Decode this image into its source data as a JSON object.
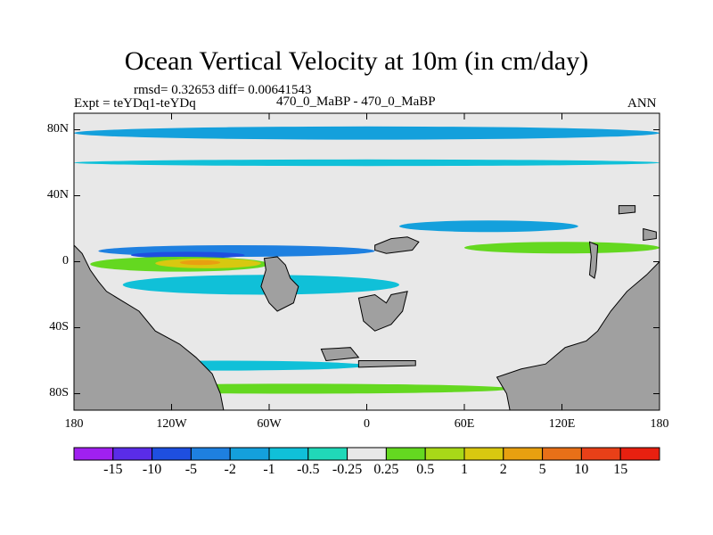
{
  "title": "Ocean Vertical Velocity at 10m (in cm/day)",
  "stats": "rmsd= 0.32653 diff= 0.00641543",
  "expt": "Expt = teYDq1-teYDq",
  "case_label": "470_0_MaBP - 470_0_MaBP",
  "season": "ANN",
  "lat_ticks": [
    "80N",
    "40N",
    "0",
    "40S",
    "80S"
  ],
  "lon_ticks": [
    "180",
    "120W",
    "60W",
    "0",
    "60E",
    "120E",
    "180"
  ],
  "colorbar": {
    "labels": [
      "-15",
      "-10",
      "-5",
      "-2",
      "-1",
      "-0.5",
      "-0.25",
      "0.25",
      "0.5",
      "1",
      "2",
      "5",
      "10",
      "15"
    ],
    "colors": [
      "#a020f0",
      "#5a2ce8",
      "#1e4fe0",
      "#1e80e0",
      "#14a0dc",
      "#10c0d8",
      "#20d8b8",
      "#e8e8e8",
      "#64d820",
      "#a8d818",
      "#d8c810",
      "#e8a010",
      "#e87018",
      "#e84018",
      "#e82010"
    ]
  },
  "chart_data": {
    "type": "heatmap",
    "title": "Ocean Vertical Velocity at 10m (in cm/day)",
    "xlabel": "",
    "ylabel": "",
    "xlim": [
      -180,
      180
    ],
    "ylim": [
      -90,
      90
    ],
    "x_ticks": [
      -180,
      -120,
      -60,
      0,
      60,
      120,
      180
    ],
    "y_ticks": [
      80,
      40,
      0,
      -40,
      -80
    ],
    "units": "cm/day",
    "levels": [
      -15,
      -10,
      -5,
      -2,
      -1,
      -0.5,
      -0.25,
      0.25,
      0.5,
      1,
      2,
      5,
      10,
      15
    ],
    "land_color": "#a0a0a0",
    "background_value_range": "-0.25 to 0.25",
    "land": [
      {
        "name": "western continent",
        "polygon": [
          [
            -180,
            -90
          ],
          [
            -180,
            10
          ],
          [
            -175,
            5
          ],
          [
            -170,
            -5
          ],
          [
            -165,
            -12
          ],
          [
            -160,
            -18
          ],
          [
            -150,
            -24
          ],
          [
            -140,
            -30
          ],
          [
            -130,
            -42
          ],
          [
            -115,
            -50
          ],
          [
            -105,
            -58
          ],
          [
            -95,
            -68
          ],
          [
            -90,
            -80
          ],
          [
            -88,
            -90
          ]
        ]
      },
      {
        "name": "eastern continent",
        "polygon": [
          [
            88,
            -90
          ],
          [
            86,
            -80
          ],
          [
            80,
            -70
          ],
          [
            95,
            -65
          ],
          [
            110,
            -62
          ],
          [
            122,
            -52
          ],
          [
            135,
            -48
          ],
          [
            142,
            -42
          ],
          [
            150,
            -30
          ],
          [
            160,
            -18
          ],
          [
            172,
            -8
          ],
          [
            180,
            0
          ],
          [
            180,
            -90
          ]
        ]
      },
      {
        "name": "island ~50W eq",
        "polygon": [
          [
            -63,
            2
          ],
          [
            -55,
            3
          ],
          [
            -50,
            -2
          ],
          [
            -47,
            -10
          ],
          [
            -42,
            -15
          ],
          [
            -45,
            -25
          ],
          [
            -55,
            -30
          ],
          [
            -60,
            -25
          ],
          [
            -65,
            -15
          ],
          [
            -62,
            -5
          ]
        ]
      },
      {
        "name": "island ~15E 25S",
        "polygon": [
          [
            -5,
            -22
          ],
          [
            5,
            -20
          ],
          [
            12,
            -25
          ],
          [
            15,
            -20
          ],
          [
            25,
            -18
          ],
          [
            22,
            -30
          ],
          [
            15,
            -38
          ],
          [
            5,
            -42
          ],
          [
            -2,
            -36
          ]
        ]
      },
      {
        "name": "island ~30E 10N",
        "polygon": [
          [
            5,
            10
          ],
          [
            15,
            14
          ],
          [
            25,
            15
          ],
          [
            32,
            12
          ],
          [
            28,
            7
          ],
          [
            12,
            5
          ],
          [
            5,
            7
          ]
        ]
      },
      {
        "name": "island ~140E 0",
        "polygon": [
          [
            137,
            12
          ],
          [
            142,
            10
          ],
          [
            141,
            -5
          ],
          [
            140,
            -10
          ],
          [
            137,
            -8
          ],
          [
            138,
            3
          ]
        ]
      },
      {
        "name": "island ~160E 30N",
        "polygon": [
          [
            155,
            34
          ],
          [
            165,
            34
          ],
          [
            165,
            30
          ],
          [
            155,
            29
          ]
        ]
      },
      {
        "name": "island ~175E 15N",
        "polygon": [
          [
            170,
            20
          ],
          [
            178,
            18
          ],
          [
            178,
            14
          ],
          [
            170,
            13
          ]
        ]
      },
      {
        "name": "island ~25W 55S",
        "polygon": [
          [
            -28,
            -53
          ],
          [
            -10,
            -52
          ],
          [
            -5,
            -58
          ],
          [
            -25,
            -60
          ]
        ]
      },
      {
        "name": "island ~5E 60S",
        "polygon": [
          [
            -5,
            -60
          ],
          [
            30,
            -60
          ],
          [
            30,
            -63
          ],
          [
            -5,
            -64
          ]
        ]
      }
    ],
    "anomaly_bands": [
      {
        "lon": [
          -165,
          5
        ],
        "lat": [
          3,
          10
        ],
        "value": -2,
        "level": "-2"
      },
      {
        "lon": [
          -145,
          -75
        ],
        "lat": [
          2,
          6
        ],
        "value": -5,
        "level": "-5"
      },
      {
        "lon": [
          -170,
          -60
        ],
        "lat": [
          -6,
          3
        ],
        "value": 0.5,
        "level": "0.5"
      },
      {
        "lon": [
          -130,
          -65
        ],
        "lat": [
          -4,
          2
        ],
        "value": 2,
        "level": "2"
      },
      {
        "lon": [
          -115,
          -90
        ],
        "lat": [
          -2,
          1
        ],
        "value": 5,
        "level": "5"
      },
      {
        "lon": [
          -150,
          20
        ],
        "lat": [
          -20,
          -8
        ],
        "value": -0.5,
        "level": "-0.5"
      },
      {
        "lon": [
          -180,
          180
        ],
        "lat": [
          74,
          82
        ],
        "value": -1,
        "level": "-1"
      },
      {
        "lon": [
          -180,
          180
        ],
        "lat": [
          58,
          62
        ],
        "value": -0.5,
        "level": "-0.5"
      },
      {
        "lon": [
          20,
          130
        ],
        "lat": [
          18,
          25
        ],
        "value": -1,
        "level": "-1"
      },
      {
        "lon": [
          60,
          180
        ],
        "lat": [
          5,
          12
        ],
        "value": 0.5,
        "level": "0.5"
      },
      {
        "lon": [
          -180,
          90
        ],
        "lat": [
          -80,
          -74
        ],
        "value": 0.5,
        "level": "0.5"
      },
      {
        "lon": [
          -180,
          0
        ],
        "lat": [
          -66,
          -60
        ],
        "value": -0.5,
        "level": "-0.5"
      }
    ]
  }
}
